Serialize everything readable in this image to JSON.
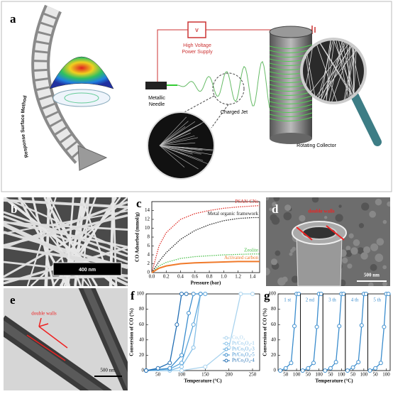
{
  "figure": {
    "panel_a": {
      "label": "a",
      "method": "Response Surface Method",
      "supply_symbol": "V",
      "supply": [
        "High Voltage",
        "Power Supply"
      ],
      "needle": [
        "Metallic",
        "Needle"
      ],
      "jet": "Charged Jet",
      "collector": "Rotating Collector"
    },
    "panel_b": {
      "label": "b",
      "scale": "400 nm"
    },
    "panel_d": {
      "label": "d",
      "annotation": "double walls",
      "scale": "500 nm"
    },
    "panel_e": {
      "label": "e",
      "annotation": "double walls",
      "scale": "500 nm"
    }
  },
  "chart_data": [
    {
      "type": "line",
      "label": "c",
      "xlabel": "Pressure (bar)",
      "ylabel": "CO Adsorbed (mmol/g)",
      "xlim": [
        0,
        1.5
      ],
      "ylim": [
        0,
        16
      ],
      "xticks": [
        {
          "value": 0,
          "label": "0.0"
        },
        {
          "value": 0.2,
          "label": "0.2"
        },
        {
          "value": 0.4,
          "label": "0.4"
        },
        {
          "value": 0.6,
          "label": "0.6"
        },
        {
          "value": 0.8,
          "label": "0.8"
        },
        {
          "value": 1,
          "label": "1.0"
        },
        {
          "value": 1.2,
          "label": "1.2"
        },
        {
          "value": 1.4,
          "label": "1.4"
        }
      ],
      "yticks": [
        0,
        2,
        4,
        6,
        8,
        10,
        12,
        14
      ],
      "x": [
        0,
        0.1,
        0.2,
        0.4,
        0.6,
        0.8,
        1,
        1.2,
        1.4,
        1.5
      ],
      "series": [
        {
          "name": "PSAN-CNs",
          "color": "#e0302a",
          "style": "dotted",
          "values": [
            0,
            6,
            9,
            12,
            13.3,
            14,
            14.5,
            14.8,
            15,
            15.1
          ]
        },
        {
          "name": "Metal organic framework",
          "color": "#222222",
          "style": "dotted",
          "values": [
            0,
            2.5,
            4.5,
            7.5,
            9.5,
            10.8,
            11.7,
            12.2,
            12.4,
            12.4
          ]
        },
        {
          "name": "Zeolite",
          "color": "#4cc04c",
          "style": "dotted",
          "values": [
            0,
            1.5,
            2.3,
            3.2,
            3.6,
            3.8,
            4,
            4.1,
            4.2,
            4.2
          ]
        },
        {
          "name": "Activated carbon",
          "color": "#f07a2a",
          "style": "solid",
          "values": [
            0,
            1,
            1.5,
            2,
            2.2,
            2.3,
            2.4,
            2.5,
            2.5,
            2.5
          ]
        }
      ]
    },
    {
      "type": "line",
      "label": "f",
      "xlabel": "Temperature (°C)",
      "ylabel": "Conversion of CO (%)",
      "xlim": [
        25,
        265
      ],
      "ylim": [
        0,
        100
      ],
      "xticks": [
        50,
        100,
        150,
        200,
        250
      ],
      "yticks": [
        0,
        20,
        40,
        60,
        80,
        100
      ],
      "series": [
        {
          "name": "Co₃O₄",
          "color": "#a9d3ee",
          "x": [
            25,
            100,
            150,
            200,
            225,
            250
          ],
          "values": [
            0,
            0,
            5,
            30,
            100,
            100
          ]
        },
        {
          "name": "Pt/Co₃O₄-1",
          "color": "#86c0e8",
          "x": [
            25,
            75,
            100,
            125,
            140,
            150
          ],
          "values": [
            0,
            0,
            5,
            30,
            100,
            100
          ]
        },
        {
          "name": "Pt/Co₃O₄-3",
          "color": "#5ea7dc",
          "x": [
            25,
            75,
            100,
            125,
            140,
            150
          ],
          "values": [
            0,
            2,
            10,
            60,
            100,
            100
          ]
        },
        {
          "name": "Pt/Co₃O₄-5",
          "color": "#3a8ccd",
          "x": [
            25,
            75,
            100,
            115,
            125,
            140
          ],
          "values": [
            0,
            3,
            20,
            75,
            100,
            100
          ]
        },
        {
          "name": "Pt/Co₃O₄-4",
          "color": "#1f6cb2",
          "x": [
            25,
            50,
            75,
            90,
            100,
            110
          ],
          "values": [
            0,
            3,
            10,
            60,
            100,
            100
          ]
        }
      ]
    },
    {
      "type": "cycles",
      "label": "g",
      "xlabel": "Temperature (°C)",
      "ylabel": "Conversion of CO (%)",
      "xlim": [
        15,
        118
      ],
      "ylim": [
        0,
        100
      ],
      "xticks": [
        50,
        100
      ],
      "yticks": [
        0,
        20,
        40,
        60,
        80,
        100
      ],
      "x": [
        25,
        50,
        75,
        90,
        100,
        110
      ],
      "series": [
        {
          "name": "1 st",
          "color": "#3a8ccd",
          "values": [
            0,
            3,
            10,
            58,
            100,
            100
          ]
        },
        {
          "name": "2 nd",
          "color": "#3a8ccd",
          "values": [
            0,
            3,
            10,
            57,
            100,
            100
          ]
        },
        {
          "name": "3 th",
          "color": "#3a8ccd",
          "values": [
            0,
            3,
            11,
            58,
            100,
            100
          ]
        },
        {
          "name": "4 th",
          "color": "#3a8ccd",
          "values": [
            0,
            4,
            11,
            59,
            100,
            100
          ]
        },
        {
          "name": "5 th",
          "color": "#3a8ccd",
          "values": [
            0,
            3,
            10,
            57,
            100,
            100
          ]
        }
      ]
    }
  ]
}
